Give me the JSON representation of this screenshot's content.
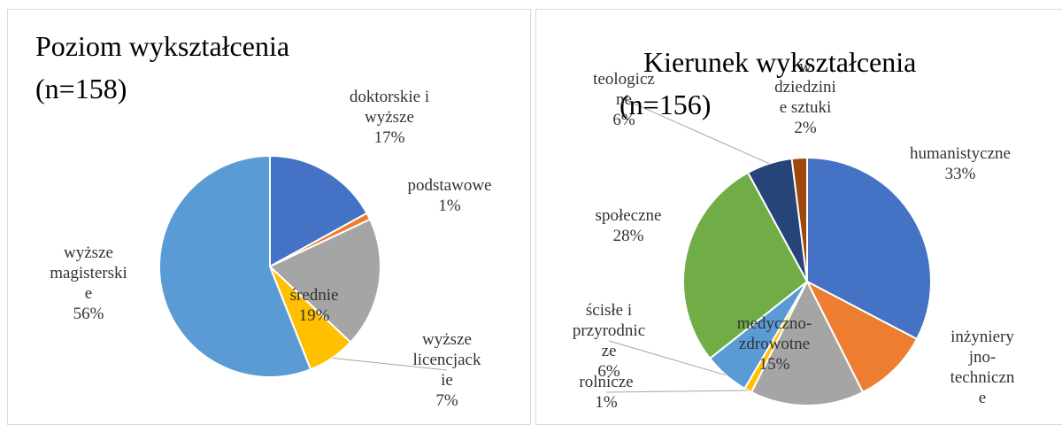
{
  "chart_data": [
    {
      "type": "pie",
      "title": "Poziom wykształcenia (n=158)",
      "categories": [
        "doktorskie i wyższe",
        "podstawowe",
        "średnie",
        "wyższe licencjackie",
        "wyższe magisterskie"
      ],
      "values": [
        17,
        1,
        19,
        7,
        56
      ],
      "value_labels": [
        "17%",
        "1%",
        "19%",
        "7%",
        "56%"
      ],
      "colors": [
        "#4472c4",
        "#ed7d31",
        "#a5a5a5",
        "#ffc000",
        "#5b9bd5"
      ]
    },
    {
      "type": "pie",
      "title": "Kierunek wykształcenia (n=156)",
      "categories": [
        "humanistyczne",
        "inżynieryjno-techniczne",
        "medyczno-zdrowotne",
        "rolnicze",
        "ścisłe i przyrodnicze",
        "społeczne",
        "teologiczne",
        "w dziedzinie sztuki"
      ],
      "values": [
        33,
        10,
        15,
        1,
        6,
        28,
        6,
        2
      ],
      "value_labels": [
        "33%",
        null,
        "15%",
        "1%",
        "6%",
        "28%",
        "6%",
        "2%"
      ],
      "colors": [
        "#4472c4",
        "#ed7d31",
        "#a5a5a5",
        "#ffc000",
        "#5b9bd5",
        "#70ad47",
        "#264478",
        "#9e480e"
      ]
    }
  ]
}
